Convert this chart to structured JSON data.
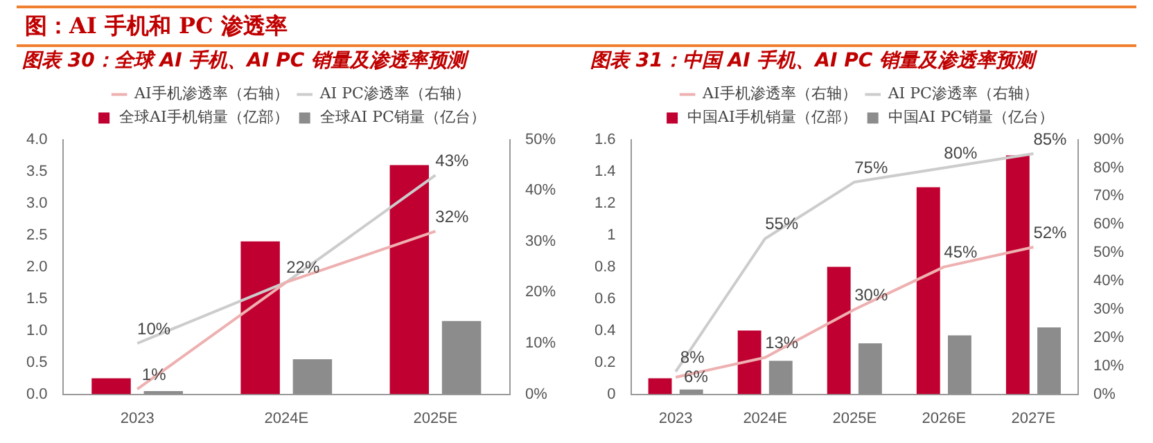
{
  "chart_data": [
    {
      "type": "bar",
      "title": "图表 30：全球 AI 手机、AI PC 销量及渗透率预测",
      "annotations": [
        "图：AI 手机和 PC 渗透率"
      ],
      "categories": [
        "2023",
        "2024E",
        "2025E"
      ],
      "series": [
        {
          "name": "全球AI手机销量（亿部）",
          "color": "#c00030",
          "values": [
            0.25,
            2.4,
            3.6
          ]
        },
        {
          "name": "全球AI PC销量（亿台）",
          "color": "#8c8c8c",
          "values": [
            0.05,
            0.55,
            1.15
          ]
        },
        {
          "name": "AI手机渗透率（右轴）",
          "type": "line",
          "axis": "y2",
          "color": "#eeb0b0",
          "values": [
            1,
            22,
            32
          ],
          "value_labels": [
            "1%",
            "22%",
            "32%"
          ]
        },
        {
          "name": "AI PC渗透率（右轴）",
          "type": "line",
          "axis": "y2",
          "color": "#cccccc",
          "values": [
            10,
            22,
            43
          ],
          "value_labels": [
            "10%",
            null,
            "43%"
          ]
        }
      ],
      "ylim": [
        0,
        4
      ],
      "yticks": [
        {
          "value": 0,
          "label": "0.0"
        },
        {
          "value": 0.5,
          "label": "0.5"
        },
        {
          "value": 1,
          "label": "1.0"
        },
        {
          "value": 1.5,
          "label": "1.5"
        },
        {
          "value": 2,
          "label": "2.0"
        },
        {
          "value": 2.5,
          "label": "2.5"
        },
        {
          "value": 3,
          "label": "3.0"
        },
        {
          "value": 3.5,
          "label": "3.5"
        },
        {
          "value": 4,
          "label": "4.0"
        }
      ],
      "y2lim": [
        0,
        50
      ],
      "y2ticks": [
        {
          "value": 0,
          "label": "0%"
        },
        {
          "value": 10,
          "label": "10%"
        },
        {
          "value": 20,
          "label": "20%"
        },
        {
          "value": 30,
          "label": "30%"
        },
        {
          "value": 40,
          "label": "40%"
        },
        {
          "value": 50,
          "label": "50%"
        }
      ],
      "legend": "top",
      "marker": "none"
    },
    {
      "type": "bar",
      "title": "图表 31：中国 AI 手机、AI PC 销量及渗透率预测",
      "categories": [
        "2023",
        "2024E",
        "2025E",
        "2026E",
        "2027E"
      ],
      "series": [
        {
          "name": "中国AI手机销量（亿部）",
          "color": "#c00030",
          "values": [
            0.1,
            0.4,
            0.8,
            1.3,
            1.5
          ]
        },
        {
          "name": "中国AI PC销量（亿台）",
          "color": "#8c8c8c",
          "values": [
            0.03,
            0.21,
            0.32,
            0.37,
            0.42
          ]
        },
        {
          "name": "AI手机渗透率（右轴）",
          "type": "line",
          "axis": "y2",
          "color": "#eeb0b0",
          "values": [
            6,
            13,
            30,
            45,
            52
          ],
          "value_labels": [
            "6%",
            "13%",
            "30%",
            "45%",
            "52%"
          ]
        },
        {
          "name": "AI PC渗透率（右轴）",
          "type": "line",
          "axis": "y2",
          "color": "#cccccc",
          "values": [
            8,
            55,
            75,
            80,
            85
          ],
          "value_labels": [
            "8%",
            "55%",
            "75%",
            "80%",
            "85%"
          ]
        }
      ],
      "ylim": [
        0,
        1.6
      ],
      "yticks": [
        0,
        0.2,
        0.4,
        0.6,
        0.8,
        1,
        1.2,
        1.4,
        1.6
      ],
      "y2lim": [
        0,
        90
      ],
      "y2ticks": [
        {
          "value": 0,
          "label": "0%"
        },
        {
          "value": 10,
          "label": "10%"
        },
        {
          "value": 20,
          "label": "20%"
        },
        {
          "value": 30,
          "label": "30%"
        },
        {
          "value": 40,
          "label": "40%"
        },
        {
          "value": 50,
          "label": "50%"
        },
        {
          "value": 60,
          "label": "60%"
        },
        {
          "value": 70,
          "label": "70%"
        },
        {
          "value": 80,
          "label": "80%"
        },
        {
          "value": 90,
          "label": "90%"
        }
      ],
      "legend": "top",
      "marker": "none"
    }
  ]
}
